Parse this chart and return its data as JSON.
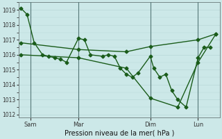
{
  "xlabel": "Pression niveau de la mer( hPa )",
  "ylim": [
    1011.8,
    1019.5
  ],
  "yticks": [
    1012,
    1013,
    1014,
    1015,
    1016,
    1017,
    1018,
    1019
  ],
  "bg_color": "#cce8e8",
  "grid_color_v": "#e8b8b8",
  "grid_color_h": "#b8d8d8",
  "line_color": "#1a5c1a",
  "marker": "D",
  "markersize": 2.5,
  "linewidth": 1.0,
  "xtick_labels": [
    "Sam",
    "Mar",
    "Dim",
    "Lun"
  ],
  "xtick_positions": [
    1,
    5,
    11,
    15
  ],
  "vline_positions": [
    1,
    5,
    11,
    15
  ],
  "series1_x": [
    0.2,
    0.7,
    1.3,
    2.0,
    2.5,
    3.0,
    3.5,
    4.0,
    5.0,
    5.5,
    6.0,
    7.0,
    7.5,
    8.0,
    8.5,
    9.0,
    9.5,
    10.0,
    11.0,
    11.3,
    11.8,
    12.3,
    12.8,
    13.3,
    14.0,
    15.0,
    15.5,
    16.0
  ],
  "series1_y": [
    1019.1,
    1018.7,
    1016.8,
    1016.0,
    1015.9,
    1015.8,
    1015.7,
    1015.5,
    1017.1,
    1017.0,
    1016.0,
    1015.9,
    1016.0,
    1015.9,
    1015.1,
    1014.7,
    1014.5,
    1014.8,
    1015.9,
    1015.1,
    1014.5,
    1014.7,
    1013.6,
    1013.0,
    1012.5,
    1015.8,
    1016.5,
    1016.5
  ],
  "series2_x": [
    0.2,
    5.0,
    9.0,
    11.0,
    15.0,
    16.5
  ],
  "series2_y": [
    1016.8,
    1016.35,
    1016.2,
    1016.55,
    1017.0,
    1017.4
  ],
  "series3_x": [
    0.2,
    5.0,
    9.0,
    11.0,
    13.3,
    15.0,
    16.5
  ],
  "series3_y": [
    1016.0,
    1015.8,
    1015.1,
    1013.1,
    1012.5,
    1015.5,
    1017.4
  ],
  "xmin": 0.0,
  "xmax": 16.8
}
